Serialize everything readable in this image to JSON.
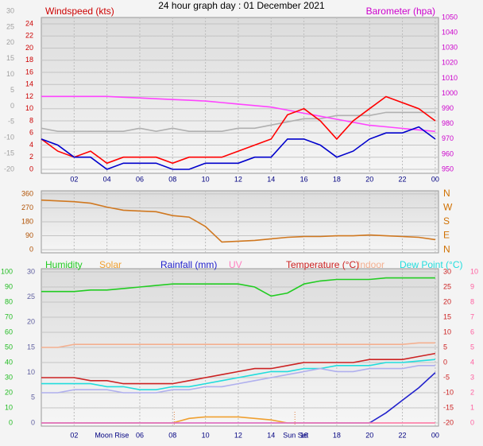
{
  "chart_data": [
    {
      "type": "line",
      "title": "24 hour graph day : 01 December 2021",
      "y_label": "Windspeed (kts)",
      "y2_label": "Barometer (hpa)",
      "x": [
        0,
        1,
        2,
        3,
        4,
        5,
        6,
        7,
        8,
        9,
        10,
        11,
        12,
        13,
        14,
        15,
        16,
        17,
        18,
        19,
        20,
        21,
        22,
        23,
        24
      ],
      "xlim": [
        0,
        24.2
      ],
      "xticks": [
        {
          "value": 2,
          "label": "02"
        },
        {
          "value": 4,
          "label": "04"
        },
        {
          "value": 6,
          "label": "06"
        },
        {
          "value": 8,
          "label": "08"
        },
        {
          "value": 10,
          "label": "10"
        },
        12,
        14,
        16,
        18,
        20,
        22,
        {
          "value": 24,
          "label": "00"
        }
      ],
      "ylim": [
        -0.66,
        25.05
      ],
      "yticks": [
        0,
        2,
        4,
        6,
        8,
        10,
        12,
        14,
        16,
        18,
        20,
        22,
        24
      ],
      "ycolor": "#cc0000",
      "y2lim": [
        947.4,
        1050
      ],
      "y2ticks": [
        950,
        960,
        970,
        980,
        990,
        1000,
        1010,
        1020,
        1030,
        1040,
        1050
      ],
      "y2color": "#cc00cc",
      "y3lim": [
        -21.26,
        28
      ],
      "y3ticks": [
        -20,
        -15,
        -10,
        -5,
        0,
        5,
        10,
        15,
        20,
        25,
        30
      ],
      "y3color": "#a0a0a0",
      "grid": true,
      "series": [
        {
          "color": "#b0b0b0",
          "axis": "y3",
          "values": [
            -7,
            -8,
            -8,
            -8,
            -8,
            -8,
            -7,
            -8,
            -7,
            -8,
            -8,
            -8,
            -7,
            -7,
            -6,
            -5,
            -4,
            -4,
            -3,
            -3,
            -3,
            -2,
            -2,
            -2,
            -2
          ]
        },
        {
          "color": "#ff44ff",
          "axis": "y2",
          "values": [
            998,
            998,
            998,
            998,
            998,
            997.5,
            997,
            996.5,
            996,
            995.5,
            995,
            994,
            993,
            992,
            991,
            989,
            987,
            985,
            983,
            981,
            979,
            978,
            977,
            976,
            975
          ]
        },
        {
          "color": "#ff0000",
          "values": [
            5,
            3,
            2,
            3,
            1,
            2,
            2,
            2,
            1,
            2,
            2,
            2,
            3,
            4,
            5,
            9,
            10,
            8,
            5,
            8,
            10,
            12,
            11,
            10,
            8
          ]
        },
        {
          "color": "#0000cc",
          "values": [
            5,
            4,
            2,
            2,
            0,
            1,
            1,
            1,
            0,
            0,
            1,
            1,
            1,
            2,
            2,
            5,
            5,
            4,
            2,
            3,
            5,
            6,
            6,
            7,
            5
          ]
        }
      ]
    },
    {
      "type": "line",
      "x": [
        0,
        1,
        2,
        3,
        4,
        5,
        6,
        7,
        8,
        9,
        10,
        11,
        12,
        13,
        14,
        15,
        16,
        17,
        18,
        19,
        20,
        21,
        22,
        23,
        24
      ],
      "xlim": [
        0,
        24.2
      ],
      "ylim": [
        -20,
        380
      ],
      "yticks": [
        0,
        90,
        180,
        270,
        360
      ],
      "ycolor": "#b05000",
      "y2lim": [
        -20,
        380
      ],
      "y2ticks": [
        {
          "value": 360,
          "label": "N"
        },
        {
          "value": 270,
          "label": "W"
        },
        {
          "value": 180,
          "label": "S"
        },
        {
          "value": 90,
          "label": "E"
        },
        {
          "value": 0,
          "label": "N"
        }
      ],
      "y2color": "#d07000",
      "grid": true,
      "series": [
        {
          "color": "#d07820",
          "values": [
            320,
            315,
            310,
            300,
            275,
            255,
            250,
            245,
            220,
            210,
            150,
            50,
            55,
            60,
            70,
            80,
            85,
            85,
            90,
            90,
            95,
            90,
            85,
            80,
            65
          ]
        }
      ]
    },
    {
      "type": "line",
      "x": [
        0,
        1,
        2,
        3,
        4,
        5,
        6,
        7,
        8,
        9,
        10,
        11,
        12,
        13,
        14,
        15,
        16,
        17,
        18,
        19,
        20,
        21,
        22,
        23,
        24
      ],
      "xlim": [
        0,
        24.2
      ],
      "xticks": [
        {
          "value": 2,
          "label": "02"
        },
        {
          "value": 6,
          "label": "06"
        },
        {
          "value": 8,
          "label": "08"
        },
        {
          "value": 10,
          "label": "10"
        },
        12,
        14,
        16,
        18,
        20,
        22,
        {
          "value": 24,
          "label": "00"
        }
      ],
      "annotations": [
        {
          "text": "Moon Rise",
          "x": 4.3
        },
        {
          "text": "Sun Set",
          "x": 15.5
        }
      ],
      "sun_lines": [
        8.1,
        15.45
      ],
      "ylim": [
        -2.1,
        102.1
      ],
      "yticks": [
        0,
        10,
        20,
        30,
        40,
        50,
        60,
        70,
        80,
        90,
        100
      ],
      "ycolor": "#22bb22",
      "y2lim": [
        -21.05,
        31.05
      ],
      "y2ticks": [
        -20,
        -15,
        -10,
        -5,
        0,
        5,
        10,
        15,
        20,
        25,
        30
      ],
      "y2color": "#cc2222",
      "y3lim": [
        -0.63,
        30.63
      ],
      "y3ticks": [
        0,
        5,
        10,
        15,
        20,
        25,
        30
      ],
      "y3color": "#6060a0",
      "y4lim": [
        -0.21,
        10.21
      ],
      "y4ticks": [
        0,
        1,
        2,
        3,
        4,
        5,
        6,
        7,
        8,
        9,
        10
      ],
      "y4color": "#ff60a0",
      "grid": true,
      "series": [
        {
          "name": "Humidity",
          "color": "#22cc22",
          "values": [
            87,
            87,
            87,
            88,
            88,
            89,
            90,
            91,
            92,
            92,
            92,
            92,
            92,
            90,
            84,
            86,
            92,
            94,
            95,
            95,
            95,
            96,
            96,
            96,
            96
          ]
        },
        {
          "name": "Solar",
          "color": "#f0a030",
          "values": [
            0,
            0,
            0,
            0,
            0,
            0,
            0,
            0,
            0,
            3,
            4,
            4,
            4,
            3,
            2,
            0,
            0,
            0,
            0,
            0,
            0,
            0,
            0,
            0,
            0
          ]
        },
        {
          "name": "Rainfall (mm)",
          "color": "#2222cc",
          "axis": "y3",
          "values": [
            0,
            0,
            0,
            0,
            0,
            0,
            0,
            0,
            0,
            0,
            0,
            0,
            0,
            0,
            0,
            0,
            0,
            0,
            0,
            0,
            0,
            2,
            4.5,
            7,
            10
          ]
        },
        {
          "name": "UV",
          "color": "#ff80c0",
          "axis": "y4",
          "values": [
            0,
            0,
            0,
            0,
            0,
            0,
            0,
            0,
            0,
            0,
            0,
            0,
            0,
            0,
            0,
            0,
            0,
            0,
            0,
            0,
            0,
            0,
            0,
            0,
            0
          ]
        },
        {
          "name": "Temperature (°C)",
          "color": "#cc2222",
          "axis": "y2",
          "values": [
            -5,
            -5,
            -5,
            -6,
            -6,
            -7,
            -7,
            -7,
            -7,
            -6,
            -5,
            -4,
            -3,
            -2,
            -2,
            -1,
            0,
            0,
            0,
            0,
            1,
            1,
            1,
            2,
            3
          ]
        },
        {
          "name": "Indoor",
          "color": "#f4b090",
          "axis": "y2",
          "values": [
            5,
            5,
            6,
            6,
            6,
            6,
            6,
            6,
            6,
            6,
            6,
            6,
            6,
            6,
            6,
            6,
            6,
            6,
            6,
            6,
            6,
            6,
            6,
            6.5,
            6.5
          ]
        },
        {
          "name": "Dew Point (°C)",
          "color": "#22dddd",
          "axis": "y2",
          "values": [
            -7,
            -7,
            -7,
            -7,
            -8,
            -8,
            -9,
            -9,
            -8,
            -8,
            -7,
            -6,
            -5,
            -4,
            -3,
            -3,
            -2,
            -2,
            -1,
            -1,
            -1,
            0,
            0,
            0.5,
            1
          ]
        },
        {
          "color": "#b0b0ee",
          "axis": "y2",
          "values": [
            -10,
            -10,
            -9,
            -9,
            -9,
            -10,
            -10,
            -10,
            -9,
            -9,
            -8,
            -8,
            -7,
            -6,
            -5,
            -4,
            -3,
            -2,
            -3,
            -3,
            -2,
            -2,
            -2,
            -1,
            -1
          ]
        }
      ]
    }
  ]
}
